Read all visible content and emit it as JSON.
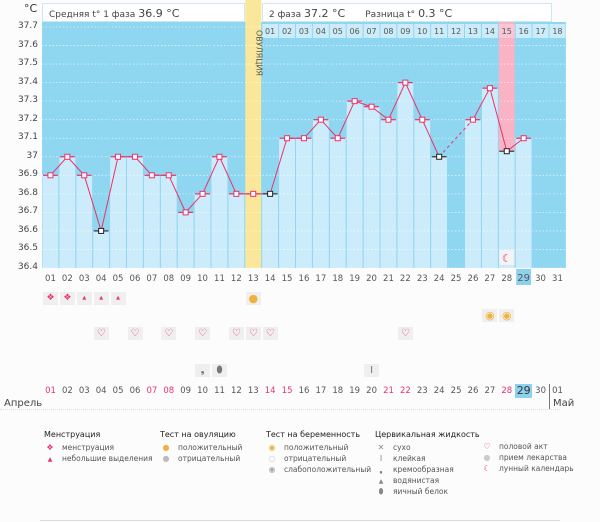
{
  "header": {
    "unit": "°C",
    "phase1_label": "Средняя t° 1 фаза",
    "phase1_value": "36.9 °C",
    "phase2_label": "2 фаза",
    "phase2_value": "37.2 °C",
    "diff_label": "Разница t°",
    "diff_value": "0.3 °C"
  },
  "cycle_day_labels": [
    "01",
    "02",
    "03",
    "04",
    "05",
    "06",
    "07",
    "08",
    "09",
    "10",
    "11",
    "12",
    "13",
    "14",
    "15",
    "16",
    "17",
    "18"
  ],
  "ovulation_label": "ОВУЛЯЦИЯ",
  "month_start": "Апрель",
  "month_next": "Май",
  "bottom_dates": [
    {
      "d": "01",
      "red": true
    },
    {
      "d": "02",
      "red": false
    },
    {
      "d": "03",
      "red": false
    },
    {
      "d": "04",
      "red": false
    },
    {
      "d": "05",
      "red": false
    },
    {
      "d": "06",
      "red": false
    },
    {
      "d": "07",
      "red": true
    },
    {
      "d": "08",
      "red": true
    },
    {
      "d": "09",
      "red": false
    },
    {
      "d": "10",
      "red": false
    },
    {
      "d": "11",
      "red": false
    },
    {
      "d": "12",
      "red": false
    },
    {
      "d": "13",
      "red": false
    },
    {
      "d": "14",
      "red": true
    },
    {
      "d": "15",
      "red": true
    },
    {
      "d": "16",
      "red": false
    },
    {
      "d": "17",
      "red": false
    },
    {
      "d": "18",
      "red": false
    },
    {
      "d": "19",
      "red": false
    },
    {
      "d": "20",
      "red": false
    },
    {
      "d": "21",
      "red": true
    },
    {
      "d": "22",
      "red": true
    },
    {
      "d": "23",
      "red": false
    },
    {
      "d": "24",
      "red": false
    },
    {
      "d": "25",
      "red": false
    },
    {
      "d": "26",
      "red": false
    },
    {
      "d": "27",
      "red": false
    },
    {
      "d": "28",
      "red": true
    },
    {
      "d": "29",
      "red": false,
      "today": true
    },
    {
      "d": "30",
      "red": false
    },
    {
      "d": "01",
      "red": false
    }
  ],
  "icon_rows": {
    "menstruation": [
      {
        "day": 1,
        "type": "heavy"
      },
      {
        "day": 2,
        "type": "heavy"
      },
      {
        "day": 3,
        "type": "light"
      },
      {
        "day": 4,
        "type": "light"
      },
      {
        "day": 5,
        "type": "light"
      }
    ],
    "ovulation_test": [
      {
        "day": 13,
        "type": "positive"
      }
    ],
    "pregnancy_test": [
      {
        "day": 27,
        "type": "weak-positive"
      },
      {
        "day": 28,
        "type": "weak-positive"
      }
    ],
    "intercourse": [
      4,
      6,
      8,
      10,
      12,
      13,
      14,
      22
    ],
    "cervical_fluid": [
      {
        "day": 10,
        "type": "creamy"
      },
      {
        "day": 11,
        "type": "egg-white"
      },
      {
        "day": 20,
        "type": "sticky"
      }
    ]
  },
  "legend": {
    "menstruation": {
      "title": "Менструация",
      "items": [
        {
          "icon": "menstruation-icon",
          "label": "менструация"
        },
        {
          "icon": "spotting-icon",
          "label": "небольшие выделения"
        }
      ]
    },
    "ovulation_test": {
      "title": "Тест на овуляцию",
      "items": [
        {
          "icon": "ovulation-positive-icon",
          "label": "положительный"
        },
        {
          "icon": "ovulation-negative-icon",
          "label": "отрицательный"
        }
      ]
    },
    "pregnancy_test": {
      "title": "Тест на беременность",
      "items": [
        {
          "icon": "pregnancy-positive-icon",
          "label": "положительный"
        },
        {
          "icon": "pregnancy-negative-icon",
          "label": "отрицательный"
        },
        {
          "icon": "pregnancy-weak-icon",
          "label": "слабоположительный"
        }
      ]
    },
    "cervical_fluid": {
      "title": "Цервикальная жидкость",
      "items": [
        {
          "icon": "dry-icon",
          "label": "сухо"
        },
        {
          "icon": "sticky-icon",
          "label": "клейкая"
        },
        {
          "icon": "creamy-icon",
          "label": "кремообразная"
        },
        {
          "icon": "watery-icon",
          "label": "водянистая"
        },
        {
          "icon": "egg-white-icon",
          "label": "яичный белок"
        }
      ]
    },
    "other": {
      "items": [
        {
          "icon": "heart-icon",
          "label": "половой акт"
        },
        {
          "icon": "pill-icon",
          "label": "прием лекарства"
        },
        {
          "icon": "moon-icon",
          "label": "лунный календарь"
        }
      ]
    }
  },
  "colors": {
    "bg_blue": "#8fd6f1",
    "bar_light": "#cdecfb",
    "ovulation": "#fbe79a",
    "period_pink": "#f9b3c5",
    "line": "#e8336b",
    "today": "#8ed1ee"
  },
  "chart_data": {
    "type": "line",
    "title": "Базальная температура",
    "ylabel": "°C",
    "ylim": [
      36.4,
      37.7
    ],
    "yticks": [
      "37.7",
      "37.6",
      "37.5",
      "37.4",
      "37.3",
      "37.2",
      "37.1",
      "37",
      "36.9",
      "36.8",
      "36.7",
      "36.6",
      "36.5",
      "36.4"
    ],
    "x": [
      "01",
      "02",
      "03",
      "04",
      "05",
      "06",
      "07",
      "08",
      "09",
      "10",
      "11",
      "12",
      "13",
      "14",
      "15",
      "16",
      "17",
      "18",
      "19",
      "20",
      "21",
      "22",
      "23",
      "24",
      "25",
      "26",
      "27",
      "28",
      "29",
      "30",
      "31"
    ],
    "series": [
      {
        "name": "temperature",
        "values": [
          36.9,
          37.0,
          36.9,
          36.6,
          37.0,
          37.0,
          36.9,
          36.9,
          36.7,
          36.8,
          37.0,
          36.8,
          36.8,
          36.8,
          37.1,
          37.1,
          37.2,
          37.1,
          37.3,
          37.27,
          37.2,
          37.4,
          37.2,
          37.0,
          null,
          37.2,
          37.37,
          37.03,
          37.1,
          null,
          null
        ],
        "excluded_days": [
          4,
          14,
          24,
          28
        ]
      }
    ],
    "ovulation_day": 13,
    "cycle_day_of_ovulation_label": "ОВУЛЯЦИЯ",
    "next_period_day": 28,
    "today": 29,
    "moon_day": 28,
    "grid": true
  }
}
